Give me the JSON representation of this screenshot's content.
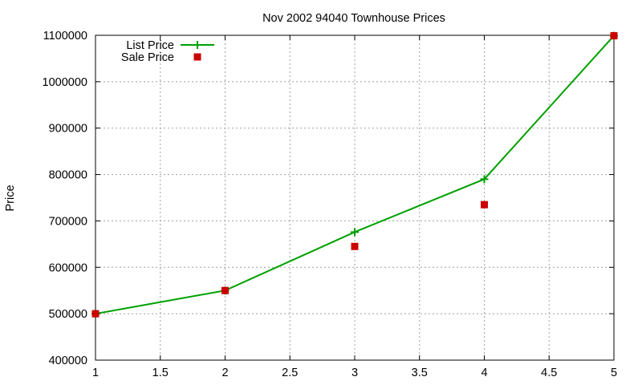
{
  "chart_data": {
    "type": "line",
    "title": "Nov 2002 94040 Townhouse Prices",
    "xlabel": "",
    "ylabel": "Price",
    "xlim": [
      1,
      5
    ],
    "ylim": [
      400000,
      1100000
    ],
    "x_ticks": [
      "1",
      "1.5",
      "2",
      "2.5",
      "3",
      "3.5",
      "4",
      "4.5",
      "5"
    ],
    "y_ticks": [
      "400000",
      "500000",
      "600000",
      "700000",
      "800000",
      "900000",
      "1000000",
      "1100000"
    ],
    "grid": true,
    "legend_position": "top-left",
    "x": [
      1,
      2,
      3,
      4,
      5
    ],
    "series": [
      {
        "name": "List Price",
        "style": "linespoints",
        "marker": "plus",
        "color": "#00a000",
        "values": [
          500000,
          550000,
          676000,
          790000,
          1099000
        ]
      },
      {
        "name": "Sale Price",
        "style": "points",
        "marker": "square",
        "color": "#cc0000",
        "values": [
          500000,
          550000,
          645000,
          735000,
          1099000
        ]
      }
    ]
  }
}
